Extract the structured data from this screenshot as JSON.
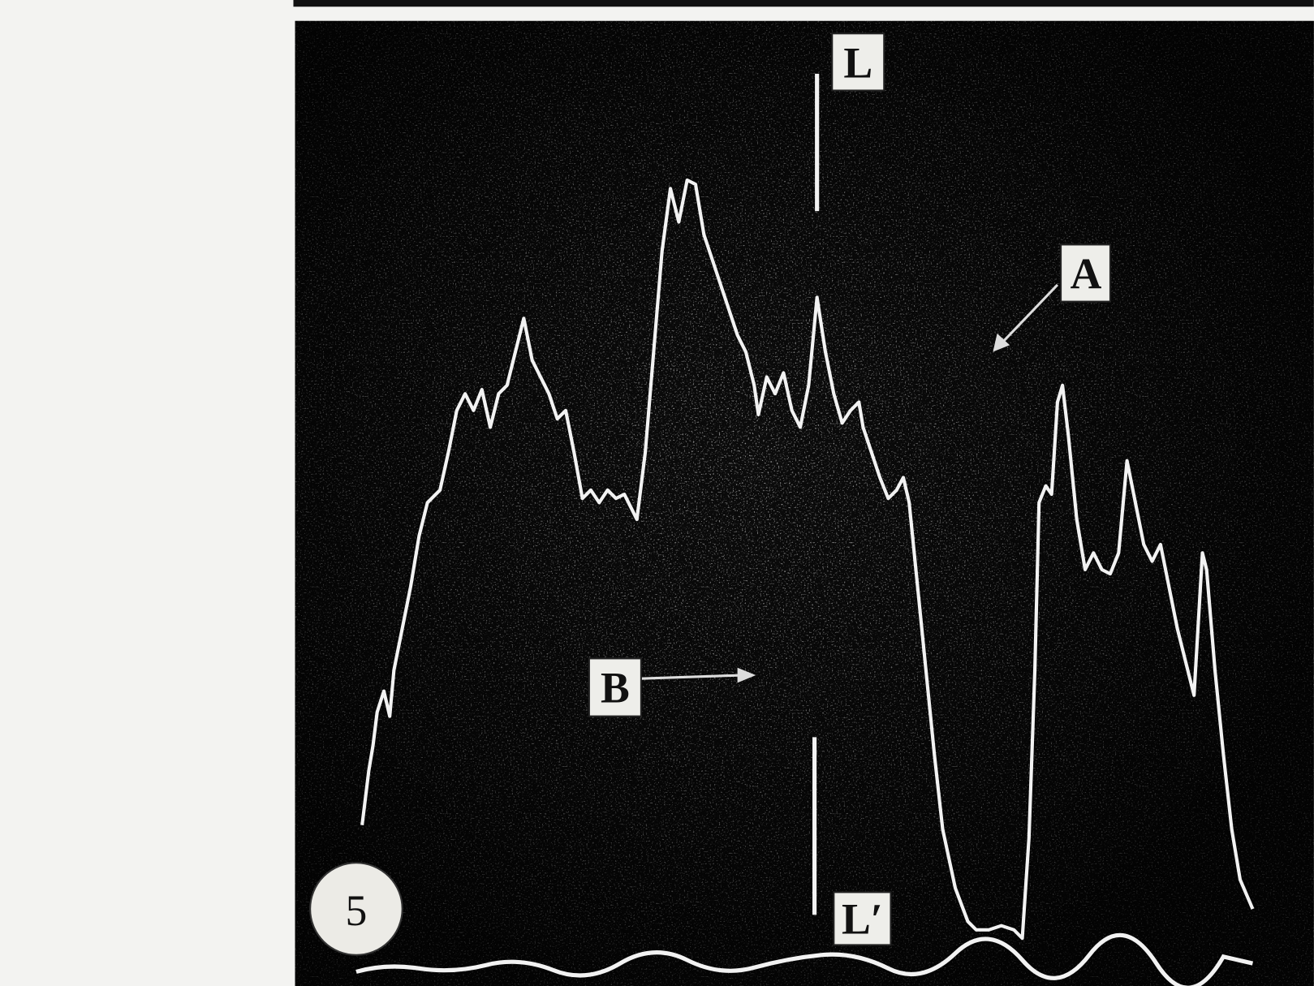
{
  "figure": {
    "panel_number": "5",
    "labels": {
      "line_top": "L",
      "line_bottom": "L′",
      "region_a": "A",
      "region_b": "B"
    }
  }
}
